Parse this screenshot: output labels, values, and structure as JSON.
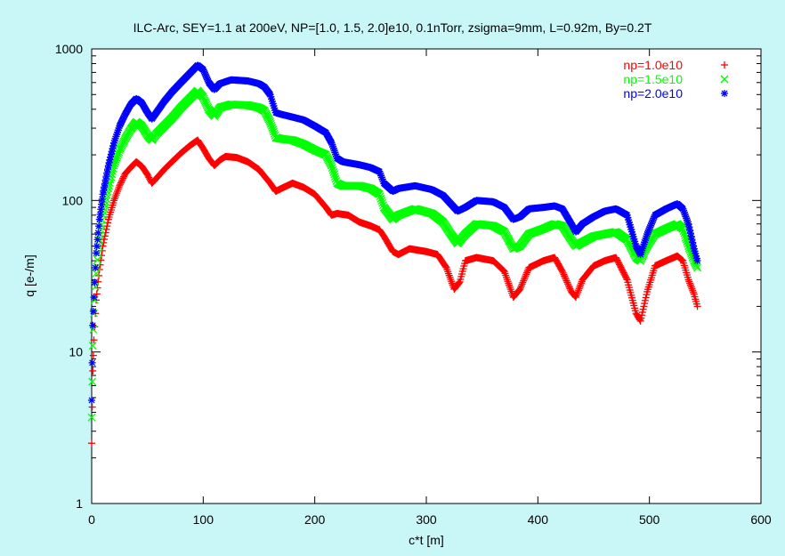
{
  "chart_data": {
    "type": "scatter",
    "title": "ILC-Arc, SEY=1.1 at 200eV, NP=[1.0, 1.5, 2.0]e10, 0.1nTorr, zsigma=9mm, L=0.92m, By=0.2T",
    "xlabel": "c*t [m]",
    "ylabel": "q [e-/m]",
    "xlim": [
      0,
      600
    ],
    "ylim": [
      1,
      1000
    ],
    "y_scale": "log",
    "x_ticks": [
      "0",
      "100",
      "200",
      "300",
      "400",
      "500",
      "600"
    ],
    "y_ticks": [
      "1",
      "10",
      "100",
      "1000"
    ],
    "legend_position": "top-right",
    "colors": {
      "background": "#c9f6f6",
      "plot_area": "#ffffff"
    },
    "series": [
      {
        "name": "np=1.0e10",
        "color": "#ff0000",
        "marker": "+",
        "points": [
          [
            0,
            2.5
          ],
          [
            1,
            7.5
          ],
          [
            2,
            12
          ],
          [
            4,
            22
          ],
          [
            7,
            35
          ],
          [
            10,
            50
          ],
          [
            15,
            75
          ],
          [
            20,
            100
          ],
          [
            25,
            125
          ],
          [
            30,
            150
          ],
          [
            35,
            165
          ],
          [
            40,
            180
          ],
          [
            45,
            168
          ],
          [
            50,
            148
          ],
          [
            54,
            130
          ],
          [
            58,
            140
          ],
          [
            65,
            160
          ],
          [
            72,
            180
          ],
          [
            80,
            205
          ],
          [
            88,
            230
          ],
          [
            95,
            250
          ],
          [
            100,
            220
          ],
          [
            105,
            190
          ],
          [
            110,
            170
          ],
          [
            115,
            185
          ],
          [
            120,
            195
          ],
          [
            130,
            192
          ],
          [
            140,
            180
          ],
          [
            150,
            160
          ],
          [
            160,
            130
          ],
          [
            165,
            115
          ],
          [
            170,
            120
          ],
          [
            180,
            130
          ],
          [
            190,
            122
          ],
          [
            200,
            110
          ],
          [
            210,
            90
          ],
          [
            215,
            80
          ],
          [
            220,
            82
          ],
          [
            230,
            80
          ],
          [
            240,
            72
          ],
          [
            250,
            68
          ],
          [
            258,
            64
          ],
          [
            262,
            58
          ],
          [
            270,
            46
          ],
          [
            275,
            44
          ],
          [
            285,
            48
          ],
          [
            300,
            46
          ],
          [
            310,
            44
          ],
          [
            318,
            36
          ],
          [
            325,
            26
          ],
          [
            330,
            29
          ],
          [
            335,
            40
          ],
          [
            345,
            42
          ],
          [
            360,
            40
          ],
          [
            370,
            34
          ],
          [
            378,
            23
          ],
          [
            384,
            26
          ],
          [
            392,
            36
          ],
          [
            405,
            40
          ],
          [
            415,
            42
          ],
          [
            422,
            34
          ],
          [
            430,
            25
          ],
          [
            434,
            23
          ],
          [
            440,
            30
          ],
          [
            450,
            37
          ],
          [
            460,
            40
          ],
          [
            470,
            42
          ],
          [
            480,
            30
          ],
          [
            488,
            18
          ],
          [
            492,
            16
          ],
          [
            498,
            25
          ],
          [
            505,
            37
          ],
          [
            515,
            40
          ],
          [
            525,
            43
          ],
          [
            530,
            40
          ],
          [
            535,
            30
          ],
          [
            540,
            24
          ],
          [
            543,
            20
          ]
        ]
      },
      {
        "name": "np=1.5e10",
        "color": "#00ff00",
        "marker": "x",
        "points": [
          [
            0,
            3.7
          ],
          [
            1,
            11
          ],
          [
            2,
            18
          ],
          [
            4,
            33
          ],
          [
            7,
            55
          ],
          [
            10,
            80
          ],
          [
            15,
            120
          ],
          [
            20,
            170
          ],
          [
            25,
            215
          ],
          [
            30,
            255
          ],
          [
            35,
            295
          ],
          [
            40,
            330
          ],
          [
            45,
            310
          ],
          [
            50,
            270
          ],
          [
            54,
            250
          ],
          [
            58,
            275
          ],
          [
            65,
            310
          ],
          [
            72,
            350
          ],
          [
            80,
            410
          ],
          [
            88,
            470
          ],
          [
            95,
            530
          ],
          [
            100,
            480
          ],
          [
            105,
            400
          ],
          [
            110,
            360
          ],
          [
            115,
            410
          ],
          [
            125,
            430
          ],
          [
            140,
            425
          ],
          [
            150,
            410
          ],
          [
            155,
            390
          ],
          [
            160,
            330
          ],
          [
            165,
            260
          ],
          [
            170,
            255
          ],
          [
            180,
            250
          ],
          [
            190,
            235
          ],
          [
            200,
            215
          ],
          [
            210,
            200
          ],
          [
            215,
            170
          ],
          [
            220,
            130
          ],
          [
            225,
            125
          ],
          [
            240,
            125
          ],
          [
            250,
            120
          ],
          [
            258,
            110
          ],
          [
            262,
            90
          ],
          [
            270,
            75
          ],
          [
            275,
            80
          ],
          [
            290,
            88
          ],
          [
            305,
            82
          ],
          [
            315,
            72
          ],
          [
            322,
            60
          ],
          [
            328,
            52
          ],
          [
            335,
            60
          ],
          [
            345,
            70
          ],
          [
            360,
            68
          ],
          [
            370,
            62
          ],
          [
            378,
            48
          ],
          [
            384,
            50
          ],
          [
            392,
            60
          ],
          [
            405,
            65
          ],
          [
            415,
            70
          ],
          [
            422,
            68
          ],
          [
            430,
            55
          ],
          [
            434,
            50
          ],
          [
            440,
            53
          ],
          [
            450,
            58
          ],
          [
            460,
            60
          ],
          [
            470,
            62
          ],
          [
            480,
            55
          ],
          [
            488,
            42
          ],
          [
            492,
            40
          ],
          [
            498,
            50
          ],
          [
            505,
            60
          ],
          [
            515,
            65
          ],
          [
            525,
            70
          ],
          [
            530,
            65
          ],
          [
            535,
            50
          ],
          [
            540,
            40
          ],
          [
            543,
            36
          ]
        ]
      },
      {
        "name": "np=2.0e10",
        "color": "#0000ff",
        "marker": "*",
        "points": [
          [
            0,
            4.8
          ],
          [
            1,
            15
          ],
          [
            2,
            23
          ],
          [
            4,
            45
          ],
          [
            7,
            75
          ],
          [
            10,
            110
          ],
          [
            15,
            170
          ],
          [
            20,
            240
          ],
          [
            25,
            310
          ],
          [
            30,
            370
          ],
          [
            35,
            430
          ],
          [
            40,
            470
          ],
          [
            45,
            440
          ],
          [
            50,
            380
          ],
          [
            54,
            345
          ],
          [
            58,
            380
          ],
          [
            65,
            450
          ],
          [
            72,
            520
          ],
          [
            80,
            600
          ],
          [
            88,
            690
          ],
          [
            95,
            780
          ],
          [
            100,
            730
          ],
          [
            105,
            600
          ],
          [
            110,
            540
          ],
          [
            115,
            590
          ],
          [
            125,
            625
          ],
          [
            140,
            615
          ],
          [
            150,
            590
          ],
          [
            155,
            560
          ],
          [
            160,
            500
          ],
          [
            165,
            380
          ],
          [
            170,
            370
          ],
          [
            180,
            355
          ],
          [
            190,
            340
          ],
          [
            200,
            310
          ],
          [
            210,
            280
          ],
          [
            215,
            240
          ],
          [
            220,
            190
          ],
          [
            225,
            180
          ],
          [
            240,
            172
          ],
          [
            250,
            165
          ],
          [
            258,
            155
          ],
          [
            262,
            130
          ],
          [
            270,
            115
          ],
          [
            275,
            120
          ],
          [
            290,
            125
          ],
          [
            305,
            118
          ],
          [
            315,
            108
          ],
          [
            322,
            95
          ],
          [
            328,
            85
          ],
          [
            335,
            90
          ],
          [
            345,
            100
          ],
          [
            360,
            98
          ],
          [
            370,
            90
          ],
          [
            378,
            75
          ],
          [
            384,
            78
          ],
          [
            392,
            88
          ],
          [
            405,
            90
          ],
          [
            415,
            92
          ],
          [
            422,
            88
          ],
          [
            430,
            70
          ],
          [
            434,
            62
          ],
          [
            440,
            70
          ],
          [
            450,
            78
          ],
          [
            460,
            85
          ],
          [
            470,
            88
          ],
          [
            480,
            80
          ],
          [
            488,
            50
          ],
          [
            492,
            44
          ],
          [
            498,
            60
          ],
          [
            505,
            80
          ],
          [
            515,
            88
          ],
          [
            525,
            95
          ],
          [
            530,
            88
          ],
          [
            535,
            70
          ],
          [
            540,
            48
          ],
          [
            543,
            40
          ]
        ]
      }
    ]
  }
}
